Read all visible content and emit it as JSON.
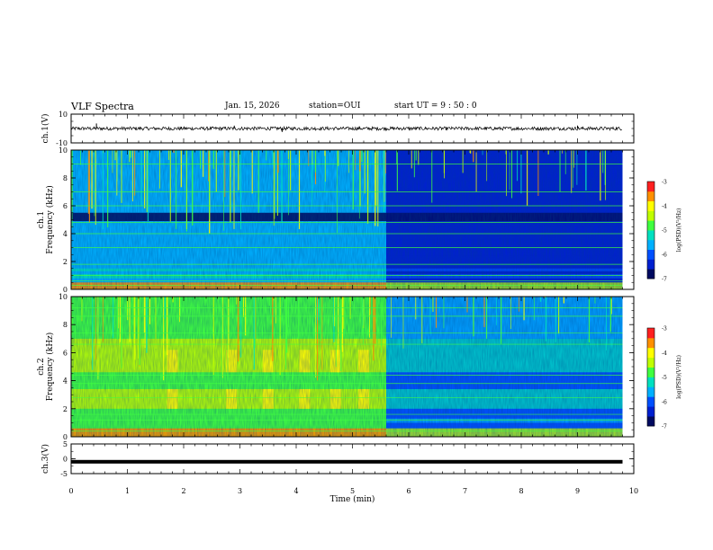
{
  "header": {
    "title": "VLF Spectra",
    "date": "Jan. 15, 2026",
    "station": "station=OUI",
    "start": "start  UT =   9  : 50 : 0"
  },
  "colors": {
    "colormap": [
      "#000a60",
      "#0020d0",
      "#0050ff",
      "#00b0ff",
      "#00e0c0",
      "#40ff40",
      "#c0ff00",
      "#ffff00",
      "#ff9000",
      "#ff2020",
      "#ffffff"
    ],
    "trace": "#000000",
    "background": "#ffffff"
  },
  "chart_data": [
    {
      "type": "line",
      "panel": "ch1-waveform",
      "ylabel": "ch.1(V)",
      "ylim": [
        -10,
        10
      ],
      "yticks": [
        "10",
        "-10"
      ],
      "xlim": [
        0,
        10
      ],
      "end_min": 9.8,
      "baseline_v": 0,
      "amplitude_v": 1.2,
      "spikes": [
        {
          "t": 0.45,
          "v": 3.5
        },
        {
          "t": 3.75,
          "v": -2.4
        },
        {
          "t": 2.9,
          "v": 2.0
        },
        {
          "t": 9.0,
          "v": 2.0
        }
      ]
    },
    {
      "type": "heatmap",
      "panel": "ch1-spectrogram",
      "ylabel": "ch.1\nFrequency (kHz)",
      "ylim": [
        0,
        10
      ],
      "yticks": [
        "0",
        "2",
        "4",
        "6",
        "8",
        "10"
      ],
      "xlim": [
        0,
        10
      ],
      "end_min": 9.8,
      "colorbar": {
        "label": "log(PSD)(V²/Hz)",
        "range": [
          -7,
          -3
        ],
        "ticks": [
          "-3",
          "-4",
          "-5",
          "-6",
          "-7"
        ]
      },
      "bands_khz": [
        {
          "f": [
            0,
            0.5
          ],
          "level": -3.6
        },
        {
          "f": [
            0.8,
            1.1
          ],
          "level": -5.2
        },
        {
          "f": [
            1.3,
            1.5
          ],
          "level": -5.3
        },
        {
          "f": [
            2.0,
            2.4
          ],
          "level": -5.5
        },
        {
          "f": [
            2.9,
            3.6
          ],
          "level": -5.6
        },
        {
          "f": [
            4.9,
            5.5
          ],
          "level": -6.7
        }
      ],
      "horizontal_lines_khz": [
        0.3,
        0.6,
        1.0,
        1.8,
        3.0,
        4.0,
        4.8,
        6.0,
        7.0,
        9.0
      ],
      "active_interval_min": [
        0,
        5.6
      ],
      "active_level": -5.6,
      "quiet_level": -6.3
    },
    {
      "type": "heatmap",
      "panel": "ch2-spectrogram",
      "ylabel": "ch.2\nFrequency (kHz)",
      "ylim": [
        0,
        10
      ],
      "yticks": [
        "0",
        "2",
        "4",
        "6",
        "8",
        "10"
      ],
      "xlim": [
        0,
        10
      ],
      "end_min": 9.8,
      "colorbar": {
        "label": "log(PSD)(V²/Hz)",
        "range": [
          -7,
          -3
        ],
        "ticks": [
          "-3",
          "-4",
          "-5",
          "-6",
          "-7"
        ]
      },
      "bands_khz": [
        {
          "f": [
            0,
            0.6
          ],
          "level": -3.8
        },
        {
          "f": [
            1.0,
            1.3
          ],
          "level": -4.8
        },
        {
          "f": [
            2.0,
            3.4
          ],
          "level": -4.6
        },
        {
          "f": [
            4.6,
            7.0
          ],
          "level": -4.6
        },
        {
          "f": [
            7.0,
            10.0
          ],
          "level": -5.0
        }
      ],
      "horizontal_lines_khz": [
        0.4,
        1.2,
        1.6,
        2.8,
        3.8,
        4.4,
        6.6,
        7.4,
        8.6,
        9.2
      ],
      "active_interval_min": [
        0,
        5.6
      ],
      "active_level": -4.7,
      "quiet_level": -6.1,
      "bursts_min": [
        1.8,
        2.85,
        3.5,
        4.15,
        4.7,
        5.2
      ]
    },
    {
      "type": "line",
      "panel": "ch3-waveform",
      "ylabel": "ch.3(V)",
      "ylim": [
        -5,
        5
      ],
      "yticks": [
        "5",
        "0",
        "-5"
      ],
      "xlim": [
        0,
        10
      ],
      "end_min": 9.8,
      "baseline_v": -1.0,
      "amplitude_v": 0.4,
      "xlabel": "Time (min)",
      "xticks": [
        "0",
        "1",
        "2",
        "3",
        "4",
        "5",
        "6",
        "7",
        "8",
        "9",
        "10"
      ]
    }
  ]
}
